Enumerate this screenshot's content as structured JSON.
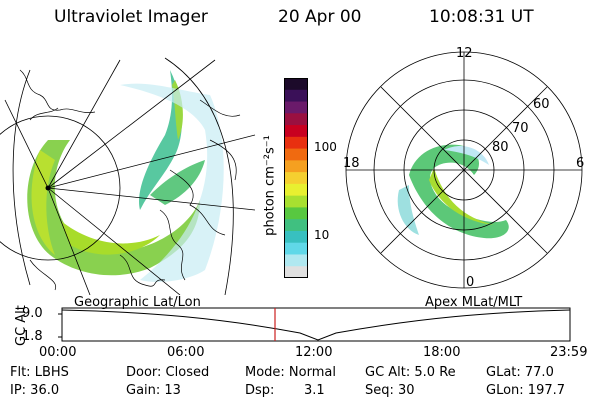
{
  "header": {
    "instrument": "Ultraviolet Imager",
    "date": "20 Apr 00",
    "time": "10:08:31 UT"
  },
  "colorbar": {
    "unit_label": "photon cm⁻²s⁻¹",
    "ticks": [
      "100",
      "10"
    ],
    "colors": [
      "#1c0a2a",
      "#3a1058",
      "#6a1a6a",
      "#9a1040",
      "#c80020",
      "#e83010",
      "#f06a10",
      "#f5a020",
      "#f5d030",
      "#e8f030",
      "#a8e030",
      "#58c840",
      "#40c080",
      "#38c0c0",
      "#60d8e8",
      "#b0e8f0",
      "#e0e0e0"
    ]
  },
  "polar": {
    "labels": [
      "12",
      "18",
      "6",
      "0",
      "80",
      "70",
      "60"
    ]
  },
  "map_caption": "Geographic Lat/Lon",
  "polar_caption": "Apex MLat/MLT",
  "altitude_plot": {
    "ylabel": "GC Alt",
    "yticks": [
      "9.0",
      "1.8"
    ],
    "xticks": [
      "00:00",
      "06:00",
      "12:00",
      "18:00",
      "23:59"
    ],
    "cursor_color": "#cc2020"
  },
  "info": {
    "flt": "Flt: LBHS",
    "door": "Door: Closed",
    "mode": "Mode: Normal",
    "gcalt": "GC Alt: 5.0 Re",
    "glat": "GLat:  77.0",
    "ip": "IP: 36.0",
    "gain": "Gain: 13",
    "dsp_label": "Dsp:",
    "dsp_value": "3.1",
    "seq": "Seq: 30",
    "glon": "GLon: 197.7"
  }
}
